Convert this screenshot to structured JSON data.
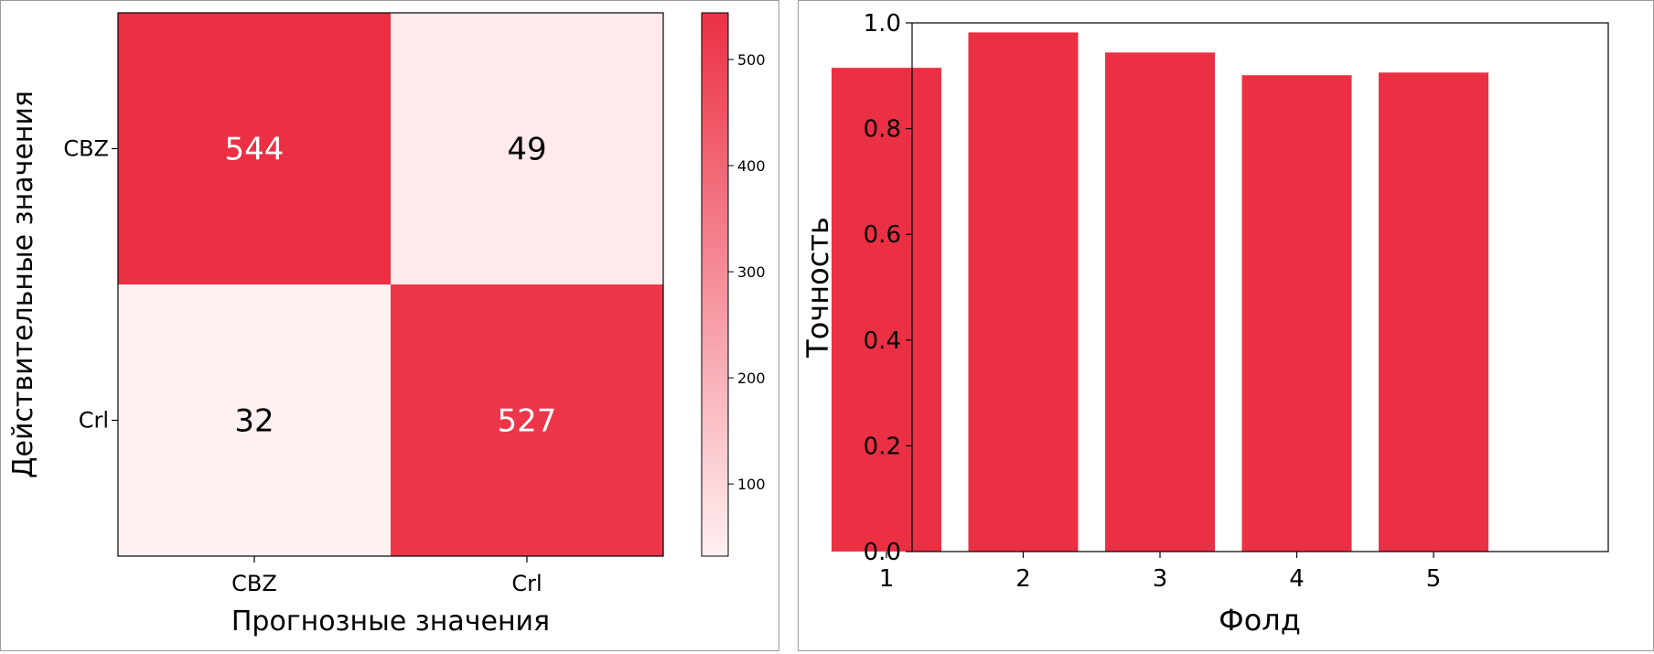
{
  "chart_data": [
    {
      "type": "heatmap",
      "title": "",
      "xlabel": "Прогнозные значения",
      "ylabel": "Действительные значения",
      "x_categories": [
        "CBZ",
        "Crl"
      ],
      "y_categories": [
        "CBZ",
        "Crl"
      ],
      "values": [
        [
          544,
          49
        ],
        [
          32,
          527
        ]
      ],
      "colorbar": {
        "min": 32,
        "max": 544,
        "ticks": [
          100,
          200,
          300,
          400,
          500
        ],
        "low_color": "#fff0f1",
        "high_color": "#ec3044"
      },
      "text_colors": {
        "dark": "#000000",
        "light": "#ffffff"
      },
      "grid": false
    },
    {
      "type": "bar",
      "title": "",
      "xlabel": "Фолд",
      "ylabel": "Точность",
      "categories": [
        "1",
        "2",
        "3",
        "4",
        "5"
      ],
      "values": [
        0.915,
        0.982,
        0.944,
        0.901,
        0.906
      ],
      "ylim": [
        0,
        1.0
      ],
      "yticks": [
        "0.0",
        "0.2",
        "0.4",
        "0.6",
        "0.8",
        "1.0"
      ],
      "bar_color": "#ec3044",
      "grid": false
    }
  ]
}
